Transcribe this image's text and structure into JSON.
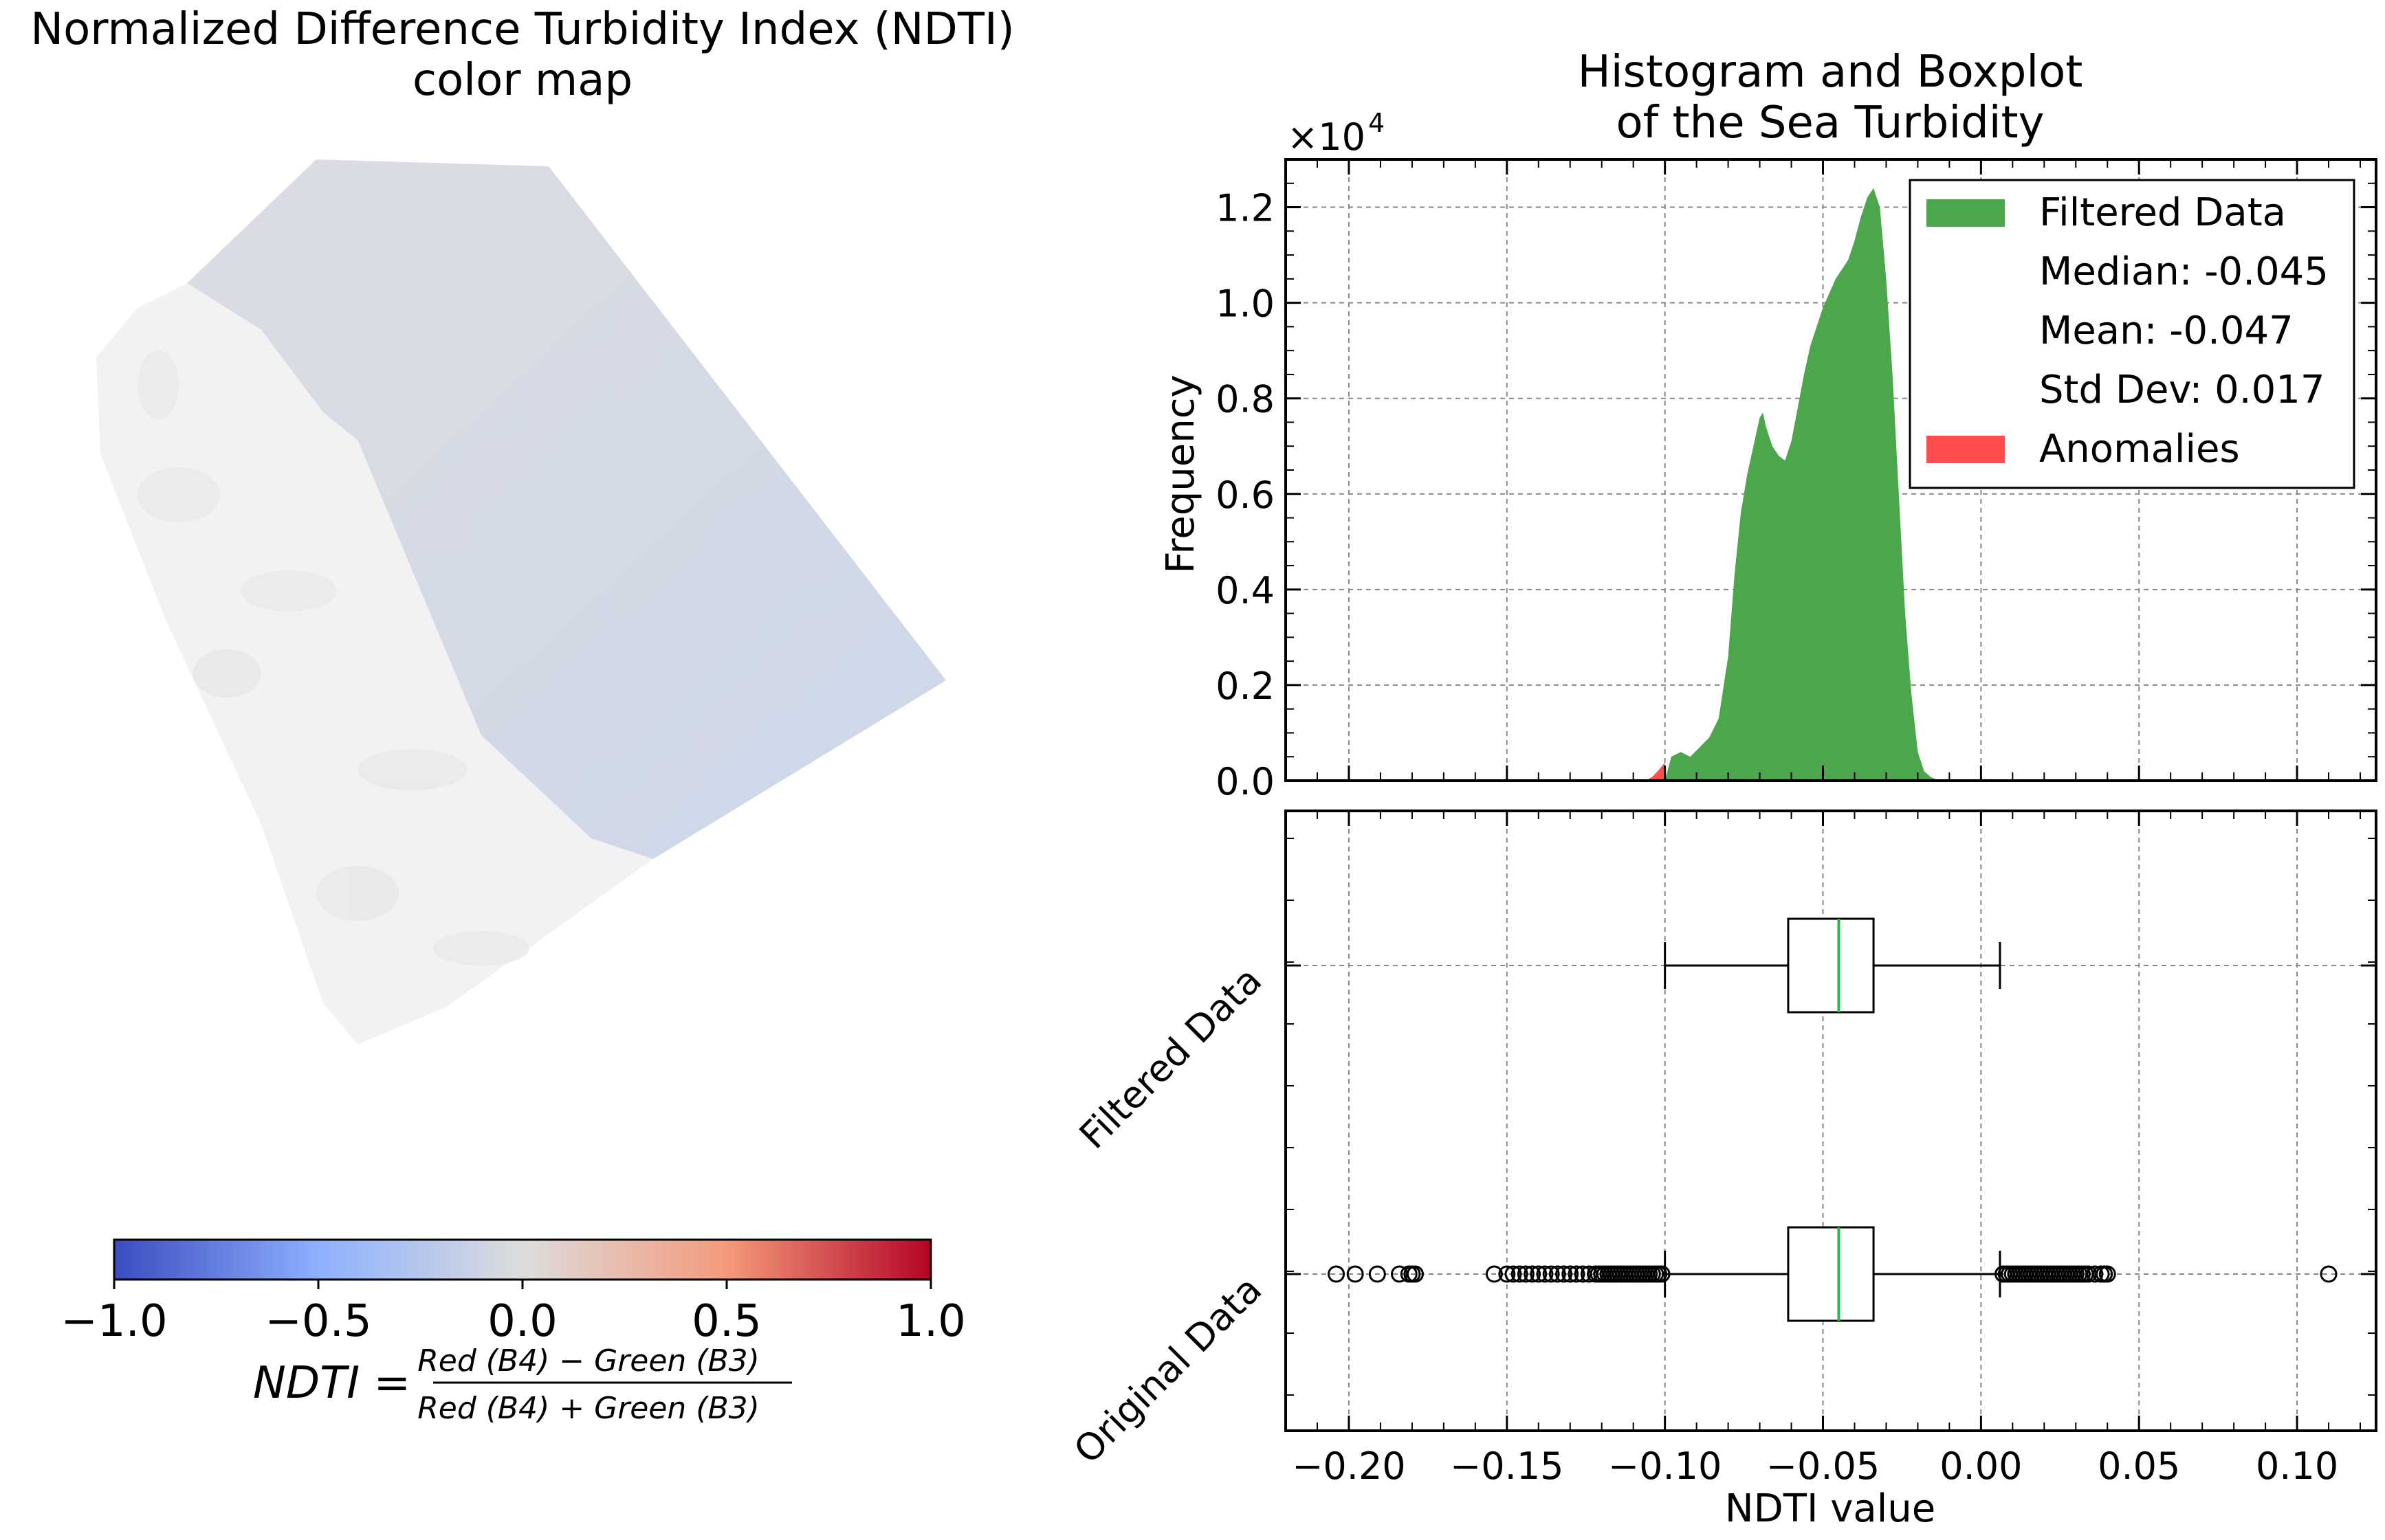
{
  "left_panel": {
    "title_line1": "Normalized Difference Turbidity Index (NDTI)",
    "title_line2": "color map",
    "colorbar": {
      "ticks": [
        "−1.0",
        "−0.5",
        "0.0",
        "0.5",
        "1.0"
      ],
      "tick_values": [
        -1.0,
        -0.5,
        0.0,
        0.5,
        1.0
      ],
      "range": [
        -1.0,
        1.0
      ],
      "colormap": "coolwarm",
      "colors": {
        "low": "#3b4cc0",
        "mid": "#dddddd",
        "high": "#b40426"
      }
    },
    "formula": {
      "lhs": "NDTI =",
      "numerator": "Red (B4) − Green (B3)",
      "denominator": "Red (B4) + Green (B3)"
    }
  },
  "chart_data": [
    {
      "type": "histogram",
      "title_line1": "Histogram and Boxplot",
      "title_line2": "of the Sea Turbidity",
      "ylabel": "Frequency",
      "y_multiplier": "×10",
      "y_multiplier_exp": "4",
      "ylim": [
        0,
        13000
      ],
      "xlim": [
        -0.22,
        0.125
      ],
      "y_ticks": [
        "0.0",
        "0.2",
        "0.4",
        "0.6",
        "0.8",
        "1.0",
        "1.2"
      ],
      "y_tick_values": [
        0,
        2000,
        4000,
        6000,
        8000,
        10000,
        12000
      ],
      "grid": true,
      "legend_position": "top-right",
      "series": [
        {
          "name": "Filtered Data",
          "color": "#4ca64c",
          "x": [
            -0.1,
            -0.098,
            -0.095,
            -0.092,
            -0.089,
            -0.086,
            -0.083,
            -0.08,
            -0.078,
            -0.076,
            -0.074,
            -0.072,
            -0.07,
            -0.069,
            -0.068,
            -0.066,
            -0.064,
            -0.062,
            -0.06,
            -0.058,
            -0.056,
            -0.054,
            -0.052,
            -0.05,
            -0.048,
            -0.046,
            -0.044,
            -0.042,
            -0.04,
            -0.038,
            -0.036,
            -0.034,
            -0.032,
            -0.03,
            -0.028,
            -0.026,
            -0.024,
            -0.022,
            -0.02,
            -0.018,
            -0.016,
            -0.014,
            -0.012
          ],
          "values": [
            0,
            500,
            600,
            500,
            700,
            900,
            1300,
            2600,
            4300,
            5600,
            6400,
            7000,
            7600,
            7700,
            7400,
            7000,
            6800,
            6700,
            7100,
            7800,
            8500,
            9100,
            9500,
            9900,
            10200,
            10500,
            10700,
            10900,
            11300,
            11800,
            12200,
            12400,
            12000,
            10500,
            8500,
            6000,
            3500,
            1800,
            600,
            200,
            80,
            20,
            0
          ]
        },
        {
          "name": "Anomalies",
          "color": "#ff4c4c",
          "x": [
            -0.106,
            -0.104,
            -0.102,
            -0.1
          ],
          "values": [
            0,
            80,
            220,
            380
          ]
        }
      ],
      "legend": {
        "filtered": "Filtered Data",
        "median": "Median: -0.045",
        "mean": "Mean: -0.047",
        "std": "Std Dev: 0.017",
        "anomalies": "Anomalies"
      }
    },
    {
      "type": "boxplot",
      "xlabel": "NDTI value",
      "xlim": [
        -0.22,
        0.125
      ],
      "x_ticks": [
        "−0.20",
        "−0.15",
        "−0.10",
        "−0.05",
        "0.00",
        "0.05",
        "0.10"
      ],
      "x_tick_values": [
        -0.2,
        -0.15,
        -0.1,
        -0.05,
        0.0,
        0.05,
        0.1
      ],
      "categories": [
        "Filtered Data",
        "Original Data"
      ],
      "median_color": "#22bb44",
      "boxes": [
        {
          "name": "Filtered Data",
          "whisker_low": -0.1,
          "q1": -0.061,
          "median": -0.045,
          "q3": -0.034,
          "whisker_high": 0.006,
          "outliers": []
        },
        {
          "name": "Original Data",
          "whisker_low": -0.1,
          "q1": -0.061,
          "median": -0.045,
          "q3": -0.034,
          "whisker_high": 0.006,
          "outliers": [
            -0.204,
            -0.198,
            -0.191,
            -0.184,
            -0.181,
            -0.18,
            -0.179,
            -0.154,
            -0.15,
            -0.148,
            -0.146,
            -0.144,
            -0.142,
            -0.14,
            -0.138,
            -0.136,
            -0.134,
            -0.132,
            -0.13,
            -0.128,
            -0.126,
            -0.124,
            -0.122,
            -0.121,
            -0.12,
            -0.119,
            -0.118,
            -0.117,
            -0.116,
            -0.115,
            -0.114,
            -0.113,
            -0.112,
            -0.111,
            -0.11,
            -0.109,
            -0.108,
            -0.107,
            -0.106,
            -0.105,
            -0.104,
            -0.103,
            -0.102,
            -0.101,
            0.007,
            0.008,
            0.009,
            0.01,
            0.011,
            0.012,
            0.013,
            0.014,
            0.015,
            0.016,
            0.017,
            0.018,
            0.019,
            0.02,
            0.021,
            0.022,
            0.023,
            0.024,
            0.025,
            0.026,
            0.027,
            0.028,
            0.029,
            0.03,
            0.031,
            0.032,
            0.033,
            0.034,
            0.036,
            0.038,
            0.039,
            0.04,
            0.11
          ]
        }
      ]
    }
  ]
}
